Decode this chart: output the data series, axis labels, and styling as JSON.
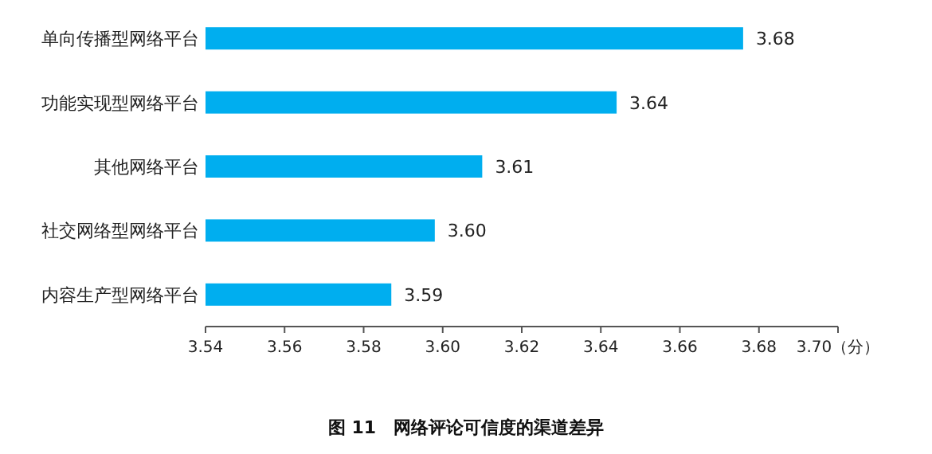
{
  "chart_data": {
    "type": "bar",
    "orientation": "horizontal",
    "title": "图 11　网络评论可信度的渠道差异",
    "categories": [
      "单向传播型网络平台",
      "功能实现型网络平台",
      "其他网络平台",
      "社交网络型网络平台",
      "内容生产型网络平台"
    ],
    "values": [
      3.676,
      3.644,
      3.61,
      3.598,
      3.587
    ],
    "value_labels": [
      "3.68",
      "3.64",
      "3.61",
      "3.60",
      "3.59"
    ],
    "color": "#00aeef",
    "xlim": [
      3.54,
      3.7
    ],
    "xticks": [
      3.54,
      3.56,
      3.58,
      {
        "value": 3.6,
        "label": "3.60"
      },
      3.62,
      3.64,
      3.66,
      3.68,
      {
        "value": 3.7,
        "label": "3.70（分）"
      }
    ],
    "grid": false
  }
}
